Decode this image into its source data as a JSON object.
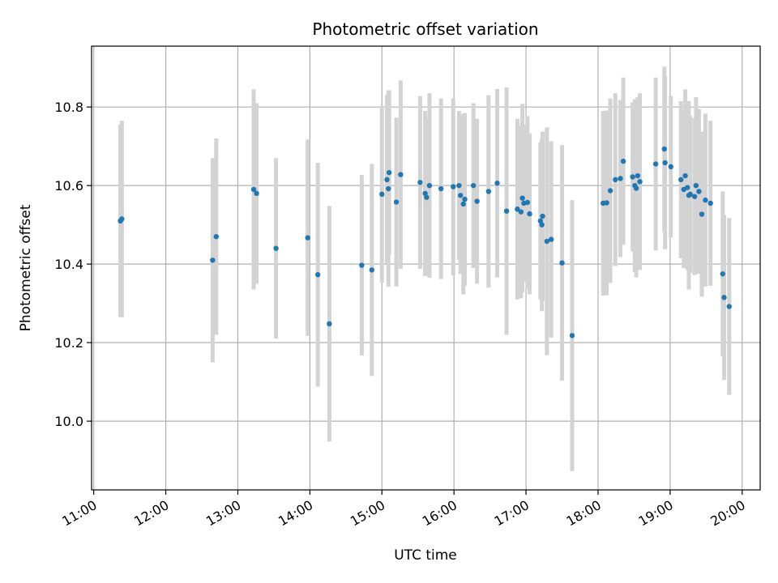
{
  "chart_data": {
    "type": "scatter",
    "title": "Photometric offset variation",
    "xlabel": "UTC time",
    "ylabel": "Photometric offset",
    "x_tick_labels": [
      "11:00",
      "12:00",
      "13:00",
      "14:00",
      "15:00",
      "16:00",
      "17:00",
      "18:00",
      "19:00",
      "20:00"
    ],
    "y_tick_labels": [
      "10.0",
      "10.2",
      "10.4",
      "10.6",
      "10.8"
    ],
    "x_ticks_hours": [
      11,
      12,
      13,
      14,
      15,
      16,
      17,
      18,
      19,
      20
    ],
    "y_ticks": [
      10.0,
      10.2,
      10.4,
      10.6,
      10.8
    ],
    "xlim_hours": [
      10.97,
      20.25
    ],
    "ylim": [
      9.825,
      10.955
    ],
    "grid": true,
    "colors": {
      "point": "#1f77b4",
      "errorbar": "#d3d3d3",
      "grid": "#b0b0b0"
    },
    "series": [
      {
        "points": [
          [
            11.37,
            10.51,
            0.245
          ],
          [
            11.39,
            10.515,
            0.25
          ],
          [
            12.65,
            10.41,
            0.26
          ],
          [
            12.7,
            10.47,
            0.25
          ],
          [
            13.22,
            10.59,
            0.255
          ],
          [
            13.26,
            10.58,
            0.23
          ],
          [
            13.53,
            10.44,
            0.23
          ],
          [
            13.97,
            10.467,
            0.25
          ],
          [
            14.11,
            10.373,
            0.285
          ],
          [
            14.27,
            10.248,
            0.3
          ],
          [
            14.72,
            10.397,
            0.23
          ],
          [
            14.86,
            10.385,
            0.27
          ],
          [
            15.0,
            10.578,
            0.225
          ],
          [
            15.07,
            10.615,
            0.215
          ],
          [
            15.09,
            10.592,
            0.25
          ],
          [
            15.1,
            10.633,
            0.21
          ],
          [
            15.2,
            10.558,
            0.215
          ],
          [
            15.26,
            10.628,
            0.24
          ],
          [
            15.53,
            10.608,
            0.22
          ],
          [
            15.6,
            10.58,
            0.21
          ],
          [
            15.62,
            10.57,
            0.2
          ],
          [
            15.66,
            10.6,
            0.235
          ],
          [
            15.82,
            10.592,
            0.23
          ],
          [
            15.99,
            10.597,
            0.225
          ],
          [
            16.07,
            10.6,
            0.19
          ],
          [
            16.09,
            10.575,
            0.2
          ],
          [
            16.13,
            10.553,
            0.23
          ],
          [
            16.15,
            10.565,
            0.22
          ],
          [
            16.27,
            10.6,
            0.21
          ],
          [
            16.32,
            10.56,
            0.21
          ],
          [
            16.48,
            10.585,
            0.245
          ],
          [
            16.6,
            10.606,
            0.24
          ],
          [
            16.73,
            10.535,
            0.315
          ],
          [
            16.88,
            10.54,
            0.23
          ],
          [
            16.93,
            10.533,
            0.22
          ],
          [
            16.95,
            10.568,
            0.24
          ],
          [
            16.97,
            10.555,
            0.2
          ],
          [
            17.02,
            10.557,
            0.22
          ],
          [
            17.05,
            10.528,
            0.205
          ],
          [
            17.2,
            10.51,
            0.2
          ],
          [
            17.22,
            10.5,
            0.22
          ],
          [
            17.23,
            10.522,
            0.215
          ],
          [
            17.29,
            10.458,
            0.29
          ],
          [
            17.35,
            10.463,
            0.25
          ],
          [
            17.5,
            10.403,
            0.3
          ],
          [
            17.64,
            10.218,
            0.345
          ],
          [
            18.07,
            10.555,
            0.235
          ],
          [
            18.12,
            10.556,
            0.235
          ],
          [
            18.17,
            10.587,
            0.235
          ],
          [
            18.24,
            10.615,
            0.22
          ],
          [
            18.31,
            10.618,
            0.2
          ],
          [
            18.35,
            10.662,
            0.213
          ],
          [
            18.48,
            10.622,
            0.19
          ],
          [
            18.51,
            10.6,
            0.22
          ],
          [
            18.53,
            10.593,
            0.227
          ],
          [
            18.55,
            10.625,
            0.2
          ],
          [
            18.58,
            10.61,
            0.225
          ],
          [
            18.8,
            10.655,
            0.22
          ],
          [
            18.92,
            10.693,
            0.21
          ],
          [
            18.93,
            10.658,
            0.22
          ],
          [
            19.01,
            10.648,
            0.18
          ],
          [
            19.15,
            10.615,
            0.2
          ],
          [
            19.19,
            10.59,
            0.2
          ],
          [
            19.21,
            10.625,
            0.22
          ],
          [
            19.24,
            10.595,
            0.21
          ],
          [
            19.26,
            10.575,
            0.24
          ],
          [
            19.28,
            10.578,
            0.2
          ],
          [
            19.34,
            10.572,
            0.2
          ],
          [
            19.36,
            10.6,
            0.225
          ],
          [
            19.4,
            10.585,
            0.21
          ],
          [
            19.44,
            10.527,
            0.21
          ],
          [
            19.49,
            10.563,
            0.22
          ],
          [
            19.56,
            10.555,
            0.21
          ],
          [
            19.73,
            10.375,
            0.21
          ],
          [
            19.75,
            10.315,
            0.21
          ],
          [
            19.82,
            10.292,
            0.225
          ]
        ]
      }
    ]
  }
}
